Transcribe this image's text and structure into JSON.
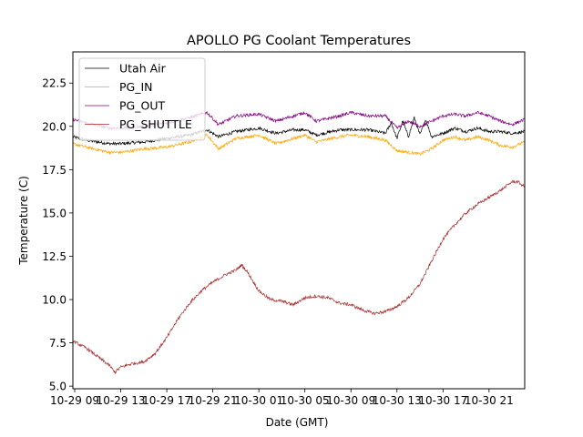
{
  "chart_data": {
    "type": "line",
    "title": "APOLLO PG Coolant Temperatures",
    "xlabel": "Date (GMT)",
    "ylabel": "Temperature (C)",
    "x_units": "hours since 10-29 09:00",
    "xlim": [
      -0.16,
      39.1
    ],
    "ylim": [
      4.85,
      24.3
    ],
    "grid": false,
    "legend_position": "top-left",
    "x_ticks": [
      {
        "x": 0,
        "label": "10-29 09"
      },
      {
        "x": 4,
        "label": "10-29 13"
      },
      {
        "x": 8,
        "label": "10-29 17"
      },
      {
        "x": 12,
        "label": "10-29 21"
      },
      {
        "x": 16,
        "label": "10-30 01"
      },
      {
        "x": 20,
        "label": "10-30 05"
      },
      {
        "x": 24,
        "label": "10-30 09"
      },
      {
        "x": 28,
        "label": "10-30 13"
      },
      {
        "x": 32,
        "label": "10-30 17"
      },
      {
        "x": 36,
        "label": "10-30 21"
      }
    ],
    "y_ticks": [
      {
        "y": 5.0,
        "label": "5.0"
      },
      {
        "y": 7.5,
        "label": "7.5"
      },
      {
        "y": 10.0,
        "label": "10.0"
      },
      {
        "y": 12.5,
        "label": "12.5"
      },
      {
        "y": 15.0,
        "label": "15.0"
      },
      {
        "y": 17.5,
        "label": "17.5"
      },
      {
        "y": 20.0,
        "label": "20.0"
      },
      {
        "y": 22.5,
        "label": "22.5"
      }
    ],
    "series": [
      {
        "name": "Utah Air",
        "color": "#000000",
        "x": [
          -0.16,
          1,
          3,
          4,
          6,
          8,
          10,
          11.5,
          12.5,
          14,
          16,
          17.5,
          19,
          20,
          21,
          23,
          24,
          25.5,
          27,
          27.5,
          28,
          28.5,
          29,
          29.5,
          30,
          30.5,
          31,
          32,
          33,
          34,
          35,
          36,
          37,
          38,
          39.1
        ],
        "y": [
          19.4,
          19.2,
          19.0,
          19.0,
          19.1,
          19.3,
          19.5,
          19.8,
          19.4,
          19.7,
          19.9,
          19.6,
          19.8,
          19.8,
          19.5,
          19.8,
          19.8,
          19.8,
          19.6,
          20.2,
          19.3,
          20.3,
          19.4,
          20.5,
          19.5,
          20.4,
          19.4,
          19.6,
          19.9,
          19.7,
          19.9,
          19.7,
          19.7,
          19.6,
          19.7
        ]
      },
      {
        "name": "PG_IN",
        "color": "#FFA500",
        "x": [
          -0.16,
          1,
          3,
          4,
          6,
          8,
          10,
          11.5,
          12.5,
          14,
          16,
          17.5,
          19,
          20,
          21,
          23,
          24,
          25.5,
          27,
          28,
          29,
          30,
          31,
          32,
          33,
          34,
          35,
          36,
          37,
          38,
          39.1
        ],
        "y": [
          19.0,
          18.8,
          18.5,
          18.5,
          18.7,
          18.8,
          19.1,
          19.5,
          18.7,
          19.3,
          19.5,
          19.0,
          19.3,
          19.5,
          19.1,
          19.4,
          19.5,
          19.4,
          19.2,
          18.6,
          18.5,
          18.4,
          18.7,
          19.2,
          19.4,
          19.2,
          19.4,
          19.2,
          18.9,
          18.8,
          19.1
        ]
      },
      {
        "name": "PG_OUT",
        "color": "#800080",
        "x": [
          -0.16,
          1,
          3,
          4,
          6,
          8,
          10,
          11.5,
          12.5,
          14,
          16,
          17.5,
          19,
          20,
          21,
          23,
          24,
          25.5,
          27,
          28,
          29,
          30,
          31,
          32,
          33,
          34,
          35,
          36,
          37,
          38,
          39.1
        ],
        "y": [
          20.4,
          20.2,
          19.9,
          19.9,
          20.0,
          20.2,
          20.5,
          20.8,
          20.1,
          20.6,
          20.7,
          20.3,
          20.6,
          20.8,
          20.3,
          20.6,
          20.8,
          20.6,
          20.6,
          19.9,
          20.3,
          20.0,
          20.3,
          20.6,
          20.7,
          20.6,
          20.8,
          20.6,
          20.3,
          20.1,
          20.4
        ]
      },
      {
        "name": "PG_SHUTTLE",
        "color": "#A52A2A",
        "x": [
          -0.16,
          1,
          2,
          3,
          3.5,
          4,
          5,
          6,
          7,
          8,
          9,
          10,
          11,
          12,
          13,
          14,
          14.5,
          15,
          16,
          17,
          18,
          19,
          20,
          21,
          22,
          23,
          24,
          25,
          26,
          27,
          28,
          29,
          30,
          31,
          32,
          33,
          34,
          35,
          36,
          37,
          38,
          38.5,
          39.1
        ],
        "y": [
          7.6,
          7.2,
          6.7,
          6.2,
          5.8,
          6.1,
          6.3,
          6.4,
          6.9,
          7.8,
          8.9,
          9.8,
          10.5,
          11.0,
          11.4,
          11.7,
          12.0,
          11.6,
          10.5,
          10.0,
          9.9,
          9.7,
          10.1,
          10.2,
          10.1,
          9.8,
          9.7,
          9.4,
          9.2,
          9.3,
          9.6,
          10.1,
          10.9,
          12.2,
          13.5,
          14.3,
          15.0,
          15.5,
          15.9,
          16.3,
          16.8,
          16.8,
          16.5
        ]
      }
    ]
  }
}
